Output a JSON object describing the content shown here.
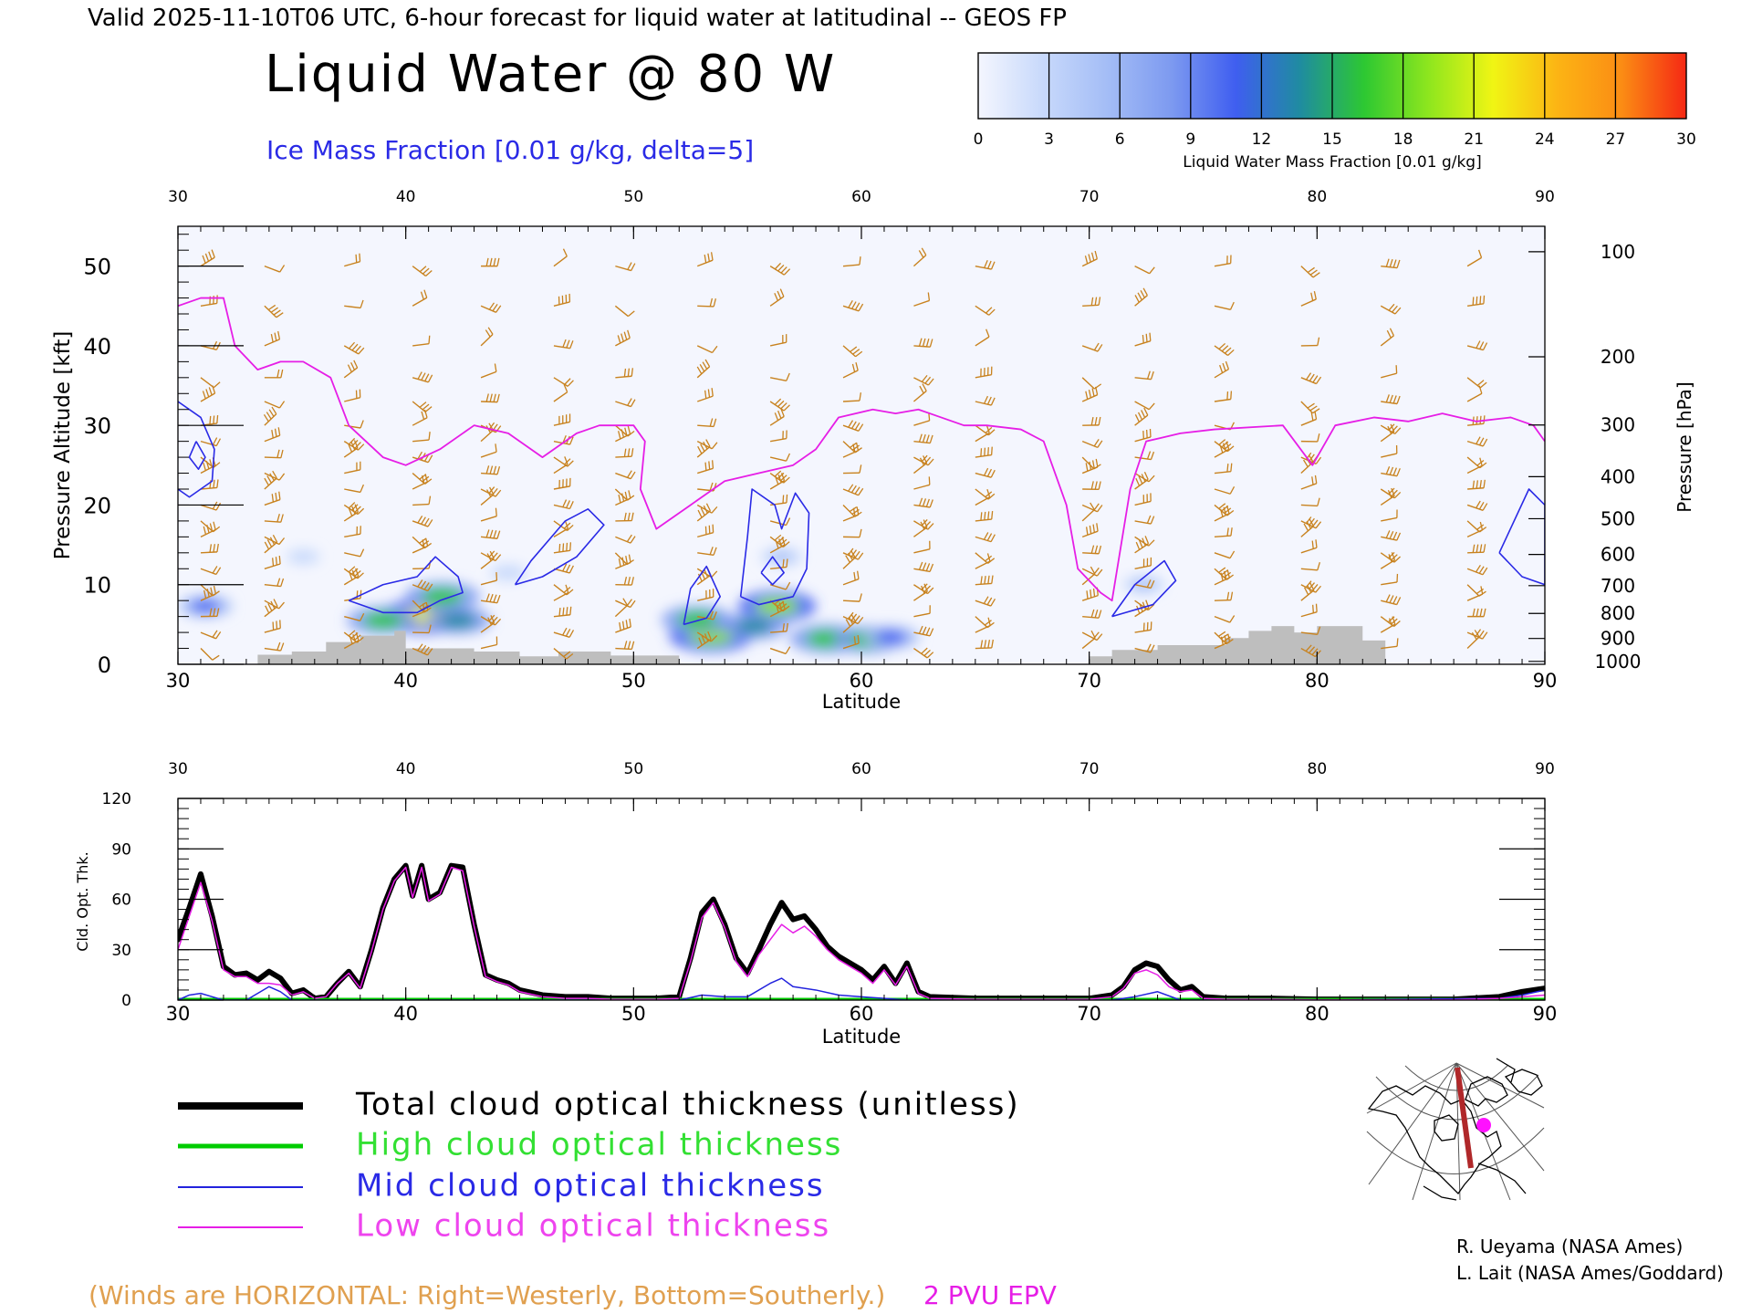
{
  "header": {
    "valid_line": "Valid 2025-11-10T06 UTC, 6-hour forecast for liquid water at latitudinal -- GEOS FP",
    "title": "Liquid Water @ 80 W",
    "subtitle": "Ice Mass Fraction [0.01 g/kg, delta=5]"
  },
  "colorbar": {
    "ticks": [
      "0",
      "3",
      "6",
      "9",
      "12",
      "15",
      "18",
      "21",
      "24",
      "27",
      "30"
    ],
    "colors": [
      "#f4f6fe",
      "#c8d9fb",
      "#a4bdf6",
      "#7d9af0",
      "#3f5ef0",
      "#1f8ca0",
      "#2dc832",
      "#8ee61e",
      "#f0f514",
      "#fcb414",
      "#fb8c14",
      "#f52814"
    ],
    "label": "Liquid Water Mass Fraction [0.01 g/kg]"
  },
  "colors": {
    "ice_contour": "#2a2ae6",
    "tropopause": "#e61ee6",
    "wind_barb": "#c8821e",
    "terrain": "#bebebe",
    "total": "#000000",
    "high": "#00cc00",
    "mid": "#2222dd",
    "low": "#e61ee6"
  },
  "chart_data": [
    {
      "type": "heatmap",
      "name": "cross_section",
      "xlabel": "Latitude",
      "ylabel": "Pressure Altitude [kft]",
      "y2label": "Pressure [hPa]",
      "xlim": [
        30,
        90
      ],
      "ylim": [
        0,
        55
      ],
      "xticks": [
        30,
        40,
        50,
        60,
        70,
        80,
        90
      ],
      "yticks": [
        0,
        10,
        20,
        30,
        40,
        50
      ],
      "pressure_ticks": [
        100,
        200,
        300,
        400,
        500,
        600,
        700,
        800,
        900,
        1000
      ],
      "liquid_water_blobs": [
        {
          "lat": 40.8,
          "alt": 6.0,
          "value": 22
        },
        {
          "lat": 41.6,
          "alt": 8.5,
          "value": 17
        },
        {
          "lat": 39.0,
          "alt": 5.5,
          "value": 16
        },
        {
          "lat": 42.3,
          "alt": 5.5,
          "value": 14
        },
        {
          "lat": 31.2,
          "alt": 7.3,
          "value": 10
        },
        {
          "lat": 53.4,
          "alt": 3.6,
          "value": 20
        },
        {
          "lat": 52.8,
          "alt": 5.6,
          "value": 16
        },
        {
          "lat": 56.3,
          "alt": 7.3,
          "value": 18
        },
        {
          "lat": 55.3,
          "alt": 4.8,
          "value": 14
        },
        {
          "lat": 58.5,
          "alt": 3.2,
          "value": 17
        },
        {
          "lat": 60.3,
          "alt": 3.1,
          "value": 15
        },
        {
          "lat": 61.3,
          "alt": 3.4,
          "value": 11
        },
        {
          "lat": 56.5,
          "alt": 13.5,
          "value": 6
        },
        {
          "lat": 72.4,
          "alt": 10.0,
          "value": 6
        },
        {
          "lat": 44.5,
          "alt": 11.5,
          "value": 4
        },
        {
          "lat": 35.5,
          "alt": 13.5,
          "value": 3
        }
      ],
      "tropopause_2pvu": [
        [
          30,
          45
        ],
        [
          31,
          46
        ],
        [
          32,
          46
        ],
        [
          32.5,
          40
        ],
        [
          33.5,
          37
        ],
        [
          34.5,
          38
        ],
        [
          35.5,
          38
        ],
        [
          36.7,
          36
        ],
        [
          37.5,
          30
        ],
        [
          39,
          26
        ],
        [
          40,
          25
        ],
        [
          41.5,
          27
        ],
        [
          43,
          30
        ],
        [
          44.5,
          29
        ],
        [
          46,
          26
        ],
        [
          47.5,
          29
        ],
        [
          48.5,
          30
        ],
        [
          50,
          30
        ],
        [
          50.5,
          28
        ],
        [
          50.3,
          22
        ],
        [
          51,
          17
        ],
        [
          52.5,
          20
        ],
        [
          54,
          23
        ],
        [
          55.5,
          24
        ],
        [
          57,
          25
        ],
        [
          58,
          27
        ],
        [
          59,
          31
        ],
        [
          60.5,
          32
        ],
        [
          61.5,
          31.5
        ],
        [
          62.5,
          32
        ],
        [
          63.5,
          31
        ],
        [
          64.5,
          30
        ],
        [
          65.5,
          30
        ],
        [
          67,
          29.5
        ],
        [
          68,
          28
        ],
        [
          69,
          20
        ],
        [
          69.5,
          12
        ],
        [
          70.5,
          9
        ],
        [
          71,
          8
        ],
        [
          71.8,
          22
        ],
        [
          72.5,
          28
        ],
        [
          74,
          29
        ],
        [
          75.5,
          29.5
        ],
        [
          78.5,
          30
        ],
        [
          79.8,
          25
        ],
        [
          80.8,
          30
        ],
        [
          82.5,
          31
        ],
        [
          84,
          30.5
        ],
        [
          85.5,
          31.5
        ],
        [
          87,
          30.5
        ],
        [
          88.5,
          31
        ],
        [
          89.5,
          30
        ],
        [
          90,
          28
        ]
      ],
      "ice_contours": [
        [
          [
            30,
            33
          ],
          [
            31,
            31
          ],
          [
            31.6,
            27
          ],
          [
            31.5,
            23
          ],
          [
            30.5,
            21
          ],
          [
            30,
            22
          ]
        ],
        [
          [
            30.8,
            28
          ],
          [
            31.2,
            26
          ],
          [
            30.9,
            24.5
          ],
          [
            30.5,
            26
          ],
          [
            30.8,
            28
          ]
        ],
        [
          [
            37.5,
            8
          ],
          [
            39,
            10
          ],
          [
            40.5,
            11
          ],
          [
            41.3,
            13.5
          ],
          [
            42.3,
            11
          ],
          [
            42.5,
            9
          ],
          [
            41.5,
            8
          ],
          [
            40.5,
            6.5
          ],
          [
            39,
            6.5
          ],
          [
            37.5,
            8
          ]
        ],
        [
          [
            44.8,
            10
          ],
          [
            45.5,
            13
          ],
          [
            47,
            18
          ],
          [
            48,
            19.5
          ],
          [
            48.7,
            17.5
          ],
          [
            47.5,
            13.5
          ],
          [
            46,
            11
          ],
          [
            44.8,
            10
          ]
        ],
        [
          [
            52.2,
            5
          ],
          [
            52.5,
            9.5
          ],
          [
            53.2,
            12.3
          ],
          [
            53.8,
            8.5
          ],
          [
            53.2,
            5.8
          ],
          [
            52.2,
            5
          ]
        ],
        [
          [
            54.7,
            8.5
          ],
          [
            55,
            16
          ],
          [
            55.2,
            22
          ],
          [
            56.2,
            20
          ],
          [
            56.5,
            17
          ],
          [
            57.1,
            21.5
          ],
          [
            57.7,
            19
          ],
          [
            57.6,
            12
          ],
          [
            57,
            8.5
          ],
          [
            55.5,
            7.5
          ],
          [
            54.7,
            8.5
          ]
        ],
        [
          [
            55.6,
            11.5
          ],
          [
            56.1,
            13.5
          ],
          [
            56.6,
            11.5
          ],
          [
            56.1,
            10
          ],
          [
            55.6,
            11.5
          ]
        ],
        [
          [
            71,
            6
          ],
          [
            72,
            10
          ],
          [
            73.3,
            13
          ],
          [
            73.8,
            10.5
          ],
          [
            72.8,
            7.5
          ],
          [
            71,
            6
          ]
        ],
        [
          [
            88,
            14
          ],
          [
            89.3,
            22
          ],
          [
            90,
            20
          ],
          [
            90,
            10
          ],
          [
            89,
            11
          ],
          [
            88,
            14
          ]
        ]
      ],
      "terrain": [
        [
          33.5,
          1.2
        ],
        [
          35,
          1.6
        ],
        [
          36.5,
          2.8
        ],
        [
          38,
          3.6
        ],
        [
          39.5,
          4.2
        ],
        [
          40,
          2.0
        ],
        [
          43,
          1.6
        ],
        [
          45,
          1.0
        ],
        [
          46.7,
          1.6
        ],
        [
          49,
          1.1
        ],
        [
          52,
          0
        ],
        [
          70,
          1.0
        ],
        [
          71,
          1.8
        ],
        [
          73,
          2.4
        ],
        [
          76,
          3.3
        ],
        [
          77,
          4.2
        ],
        [
          78,
          4.8
        ],
        [
          79,
          4.0
        ],
        [
          80,
          4.8
        ],
        [
          81,
          4.8
        ],
        [
          82,
          3.0
        ],
        [
          83,
          0
        ]
      ],
      "wind_barb_lats": [
        31,
        33.8,
        37.3,
        40.3,
        43.3,
        46.5,
        49.2,
        52.8,
        56,
        59.2,
        62.3,
        65,
        69.7,
        72,
        75.5,
        79.3,
        82.8,
        86.6
      ],
      "wind_barb_alts": [
        2,
        4,
        6,
        8,
        10,
        12,
        14,
        16,
        18,
        20,
        22,
        24,
        26,
        28,
        30,
        33,
        36,
        40,
        45,
        50
      ]
    },
    {
      "type": "line",
      "name": "optical_thickness",
      "xlabel": "Latitude",
      "ylabel": "Cld. Opt. Thk.",
      "xlim": [
        30,
        90
      ],
      "ylim": [
        0,
        120
      ],
      "xticks": [
        30,
        40,
        50,
        60,
        70,
        80,
        90
      ],
      "yticks": [
        0,
        30,
        60,
        90,
        120
      ],
      "series": [
        {
          "name": "Total cloud optical thickness (unitless)",
          "key": "total",
          "x": [
            30,
            30.5,
            31,
            31.5,
            32,
            32.5,
            33,
            33.5,
            34,
            34.5,
            35,
            35.5,
            36,
            36.5,
            37,
            37.5,
            38,
            38.5,
            39,
            39.5,
            40,
            40.3,
            40.7,
            41,
            41.5,
            42,
            42.5,
            43,
            43.5,
            44,
            44.5,
            45,
            46,
            47,
            48,
            49,
            50,
            51,
            52,
            52.5,
            53,
            53.5,
            54,
            54.5,
            55,
            55.5,
            56,
            56.5,
            57,
            57.5,
            58,
            58.5,
            59,
            59.5,
            60,
            60.5,
            61,
            61.5,
            62,
            62.5,
            63,
            65,
            68,
            70,
            71,
            71.5,
            72,
            72.5,
            73,
            73.5,
            74,
            74.5,
            75,
            76,
            78,
            80,
            82,
            84,
            86,
            88,
            89,
            90
          ],
          "y": [
            36,
            55,
            75,
            50,
            20,
            15,
            16,
            12,
            17,
            13,
            4,
            6,
            1,
            2,
            10,
            17,
            8,
            30,
            55,
            72,
            80,
            62,
            80,
            60,
            64,
            80,
            79,
            45,
            15,
            12,
            10,
            6,
            3,
            2,
            2,
            1,
            1,
            1,
            2,
            25,
            52,
            60,
            45,
            25,
            16,
            30,
            45,
            58,
            48,
            50,
            42,
            32,
            26,
            22,
            18,
            12,
            20,
            10,
            22,
            5,
            2,
            1,
            1,
            1,
            3,
            8,
            18,
            22,
            20,
            12,
            6,
            8,
            2,
            1,
            1,
            0.5,
            0.5,
            0.5,
            0.5,
            2,
            5,
            7
          ]
        },
        {
          "name": "High cloud optical thickness",
          "key": "high",
          "x": [
            30,
            45,
            60,
            75,
            90
          ],
          "y": [
            0.3,
            0.3,
            0.3,
            0.3,
            0.3
          ]
        },
        {
          "name": "Mid cloud optical thickness",
          "key": "mid",
          "x": [
            30,
            30.5,
            31,
            31.5,
            32,
            33,
            34,
            34.5,
            35,
            36,
            40,
            45,
            52,
            53,
            54,
            55,
            56,
            56.5,
            57,
            58,
            59,
            60,
            61,
            62,
            70,
            71,
            72,
            73,
            74,
            80,
            88,
            89,
            90
          ],
          "y": [
            0,
            3,
            4,
            2,
            0,
            0,
            8,
            5,
            0,
            0,
            0,
            0,
            0,
            3,
            2,
            2,
            10,
            13,
            8,
            6,
            3,
            2,
            1,
            0,
            0,
            0,
            2,
            5,
            0,
            0,
            1,
            3,
            6
          ]
        },
        {
          "name": "Low cloud optical thickness",
          "key": "low",
          "x": [
            30,
            30.5,
            31,
            31.5,
            32,
            32.5,
            33,
            33.5,
            34,
            34.5,
            35,
            35.5,
            36,
            36.5,
            37,
            37.5,
            38,
            38.5,
            39,
            39.5,
            40,
            40.3,
            40.7,
            41,
            41.5,
            42,
            42.5,
            43,
            43.5,
            44,
            44.5,
            45,
            46,
            47,
            48,
            49,
            50,
            51,
            52,
            52.5,
            53,
            53.5,
            54,
            54.5,
            55,
            55.5,
            56,
            56.5,
            57,
            57.5,
            58,
            58.5,
            59,
            59.5,
            60,
            60.5,
            61,
            61.5,
            62,
            62.5,
            63,
            65,
            68,
            70,
            71,
            71.5,
            72,
            72.5,
            73,
            73.5,
            74,
            74.5,
            75,
            76,
            78,
            80,
            82,
            84,
            86,
            88,
            89,
            90
          ],
          "y": [
            30,
            50,
            70,
            47,
            18,
            14,
            14,
            10,
            10,
            9,
            3,
            5,
            1,
            2,
            10,
            16,
            7,
            29,
            54,
            71,
            79,
            61,
            79,
            59,
            63,
            79,
            77,
            44,
            14,
            11,
            9,
            5,
            2,
            1,
            1,
            0.5,
            0.5,
            0.5,
            1,
            23,
            49,
            58,
            43,
            23,
            14,
            27,
            36,
            45,
            40,
            44,
            38,
            30,
            24,
            20,
            16,
            10,
            18,
            9,
            20,
            4,
            1,
            0.5,
            0.5,
            0.5,
            2,
            7,
            16,
            18,
            15,
            8,
            5,
            6,
            1,
            0.5,
            0.5,
            0.2,
            0.2,
            0.2,
            0.2,
            1,
            2,
            3
          ]
        }
      ]
    }
  ],
  "legend": {
    "items": [
      {
        "label": "Total cloud optical thickness (unitless)",
        "key": "total"
      },
      {
        "label": "High cloud optical thickness",
        "key": "high"
      },
      {
        "label": "Mid cloud optical thickness",
        "key": "mid"
      },
      {
        "label": "Low cloud optical thickness",
        "key": "low"
      }
    ]
  },
  "footer": {
    "winds_note": "(Winds are HORIZONTAL: Right=Westerly, Bottom=Southerly.)",
    "pvu_label": "2 PVU EPV",
    "credit_1": "R. Ueyama (NASA Ames)",
    "credit_2": "L. Lait (NASA Ames/Goddard)"
  }
}
